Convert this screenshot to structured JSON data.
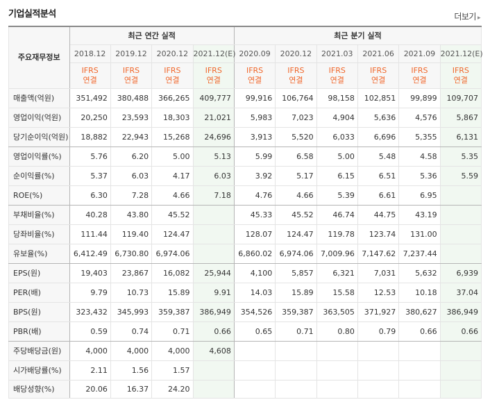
{
  "title": "기업실적분석",
  "more_label": "더보기",
  "colors": {
    "ifrs_label": "#f0662a",
    "estimate_bg": "#f1f8f1",
    "header_bg": "#f7f7f7"
  },
  "table": {
    "corner_label": "주요재무정보",
    "annual_header": "최근 연간 실적",
    "quarterly_header": "최근 분기 실적",
    "periods": [
      "2018.12",
      "2019.12",
      "2020.12",
      "2021.12(E)",
      "2020.09",
      "2020.12",
      "2021.03",
      "2021.06",
      "2021.09",
      "2021.12(E)"
    ],
    "basis": {
      "line1": "IFRS",
      "line2": "연결"
    },
    "rows": [
      {
        "label": "매출액(억원)",
        "values": [
          "351,492",
          "380,488",
          "366,265",
          "409,777",
          "99,916",
          "106,764",
          "98,158",
          "102,851",
          "99,899",
          "109,707"
        ]
      },
      {
        "label": "영업이익(억원)",
        "values": [
          "20,250",
          "23,593",
          "18,303",
          "21,021",
          "5,983",
          "7,023",
          "4,904",
          "5,636",
          "4,576",
          "5,867"
        ]
      },
      {
        "label": "당기순이익(억원)",
        "values": [
          "18,882",
          "22,943",
          "15,268",
          "24,696",
          "3,913",
          "5,520",
          "6,033",
          "6,696",
          "5,355",
          "6,131"
        ],
        "group_end": true
      },
      {
        "label": "영업이익률(%)",
        "values": [
          "5.76",
          "6.20",
          "5.00",
          "5.13",
          "5.99",
          "6.58",
          "5.00",
          "5.48",
          "4.58",
          "5.35"
        ]
      },
      {
        "label": "순이익률(%)",
        "values": [
          "5.37",
          "6.03",
          "4.17",
          "6.03",
          "3.92",
          "5.17",
          "6.15",
          "6.51",
          "5.36",
          "5.59"
        ]
      },
      {
        "label": "ROE(%)",
        "values": [
          "6.30",
          "7.28",
          "4.66",
          "7.18",
          "4.76",
          "4.66",
          "5.39",
          "6.61",
          "6.95",
          ""
        ],
        "group_end": true
      },
      {
        "label": "부채비율(%)",
        "values": [
          "40.28",
          "43.80",
          "45.52",
          "",
          "45.33",
          "45.52",
          "46.74",
          "44.75",
          "43.19",
          ""
        ]
      },
      {
        "label": "당좌비율(%)",
        "values": [
          "111.44",
          "119.40",
          "124.47",
          "",
          "128.07",
          "124.47",
          "119.78",
          "123.74",
          "131.00",
          ""
        ]
      },
      {
        "label": "유보율(%)",
        "values": [
          "6,412.49",
          "6,730.80",
          "6,974.06",
          "",
          "6,860.02",
          "6,974.06",
          "7,009.96",
          "7,147.62",
          "7,237.44",
          ""
        ],
        "group_end": true
      },
      {
        "label": "EPS(원)",
        "values": [
          "19,403",
          "23,867",
          "16,082",
          "25,944",
          "4,100",
          "5,857",
          "6,321",
          "7,031",
          "5,632",
          "6,939"
        ]
      },
      {
        "label": "PER(배)",
        "values": [
          "9.79",
          "10.73",
          "15.89",
          "9.91",
          "14.03",
          "15.89",
          "15.58",
          "12.53",
          "10.18",
          "37.04"
        ]
      },
      {
        "label": "BPS(원)",
        "values": [
          "323,432",
          "345,993",
          "359,387",
          "386,949",
          "354,526",
          "359,387",
          "363,505",
          "371,927",
          "380,627",
          "386,949"
        ]
      },
      {
        "label": "PBR(배)",
        "values": [
          "0.59",
          "0.74",
          "0.71",
          "0.66",
          "0.65",
          "0.71",
          "0.80",
          "0.79",
          "0.66",
          "0.66"
        ],
        "group_end": true
      },
      {
        "label": "주당배당금(원)",
        "values": [
          "4,000",
          "4,000",
          "4,000",
          "4,608",
          "",
          "",
          "",
          "",
          "",
          ""
        ]
      },
      {
        "label": "시가배당률(%)",
        "values": [
          "2.11",
          "1.56",
          "1.57",
          "",
          "",
          "",
          "",
          "",
          "",
          ""
        ]
      },
      {
        "label": "배당성향(%)",
        "values": [
          "20.06",
          "16.37",
          "24.20",
          "",
          "",
          "",
          "",
          "",
          "",
          ""
        ]
      }
    ]
  }
}
